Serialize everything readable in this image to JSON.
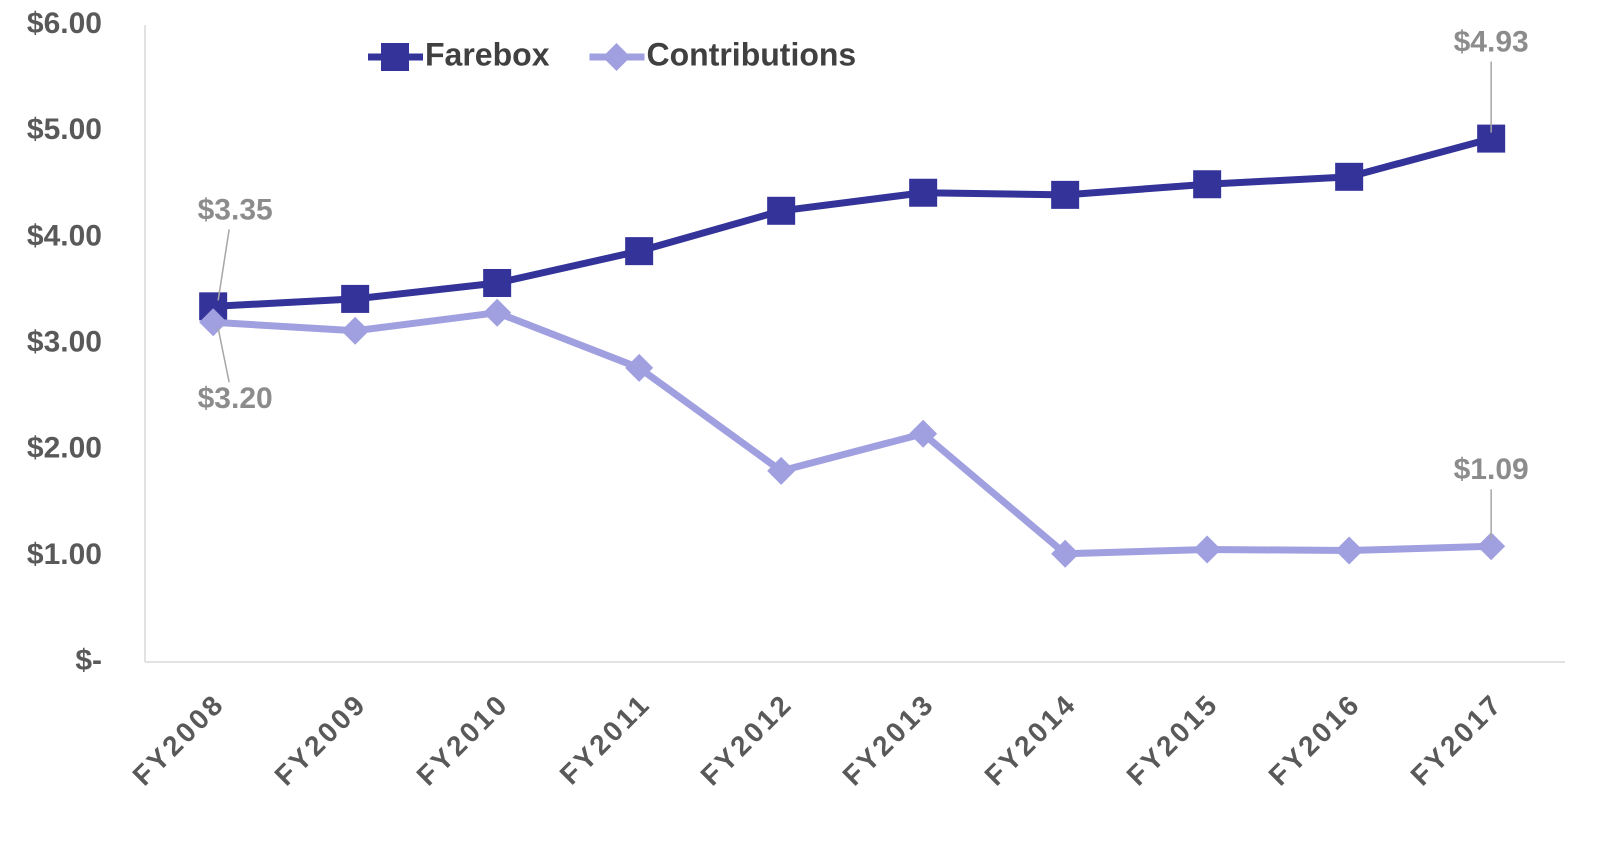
{
  "chart_data": {
    "type": "line",
    "categories": [
      "FY2008",
      "FY2009",
      "FY2010",
      "FY2011",
      "FY2012",
      "FY2013",
      "FY2014",
      "FY2015",
      "FY2016",
      "FY2017"
    ],
    "series": [
      {
        "name": "Farebox",
        "color": "#333399",
        "marker": "square",
        "values": [
          3.35,
          3.42,
          3.57,
          3.87,
          4.25,
          4.42,
          4.4,
          4.5,
          4.57,
          4.93
        ],
        "value_labels": [
          "$3.35",
          null,
          null,
          null,
          null,
          null,
          null,
          null,
          null,
          "$4.93"
        ]
      },
      {
        "name": "Contributions",
        "color": "#a09fe0",
        "marker": "diamond",
        "values": [
          3.2,
          3.12,
          3.29,
          2.77,
          1.8,
          2.15,
          1.02,
          1.06,
          1.05,
          1.09
        ],
        "value_labels": [
          "$3.20",
          null,
          null,
          null,
          null,
          null,
          null,
          null,
          null,
          "$1.09"
        ]
      }
    ],
    "ylim": [
      0,
      6
    ],
    "yticks": [
      {
        "value": 0,
        "label": "$-"
      },
      {
        "value": 1,
        "label": "$1.00"
      },
      {
        "value": 2,
        "label": "$2.00"
      },
      {
        "value": 3,
        "label": "$3.00"
      },
      {
        "value": 4,
        "label": "$4.00"
      },
      {
        "value": 5,
        "label": "$5.00"
      },
      {
        "value": 6,
        "label": "$6.00"
      }
    ],
    "grid": false,
    "legend": "top"
  }
}
